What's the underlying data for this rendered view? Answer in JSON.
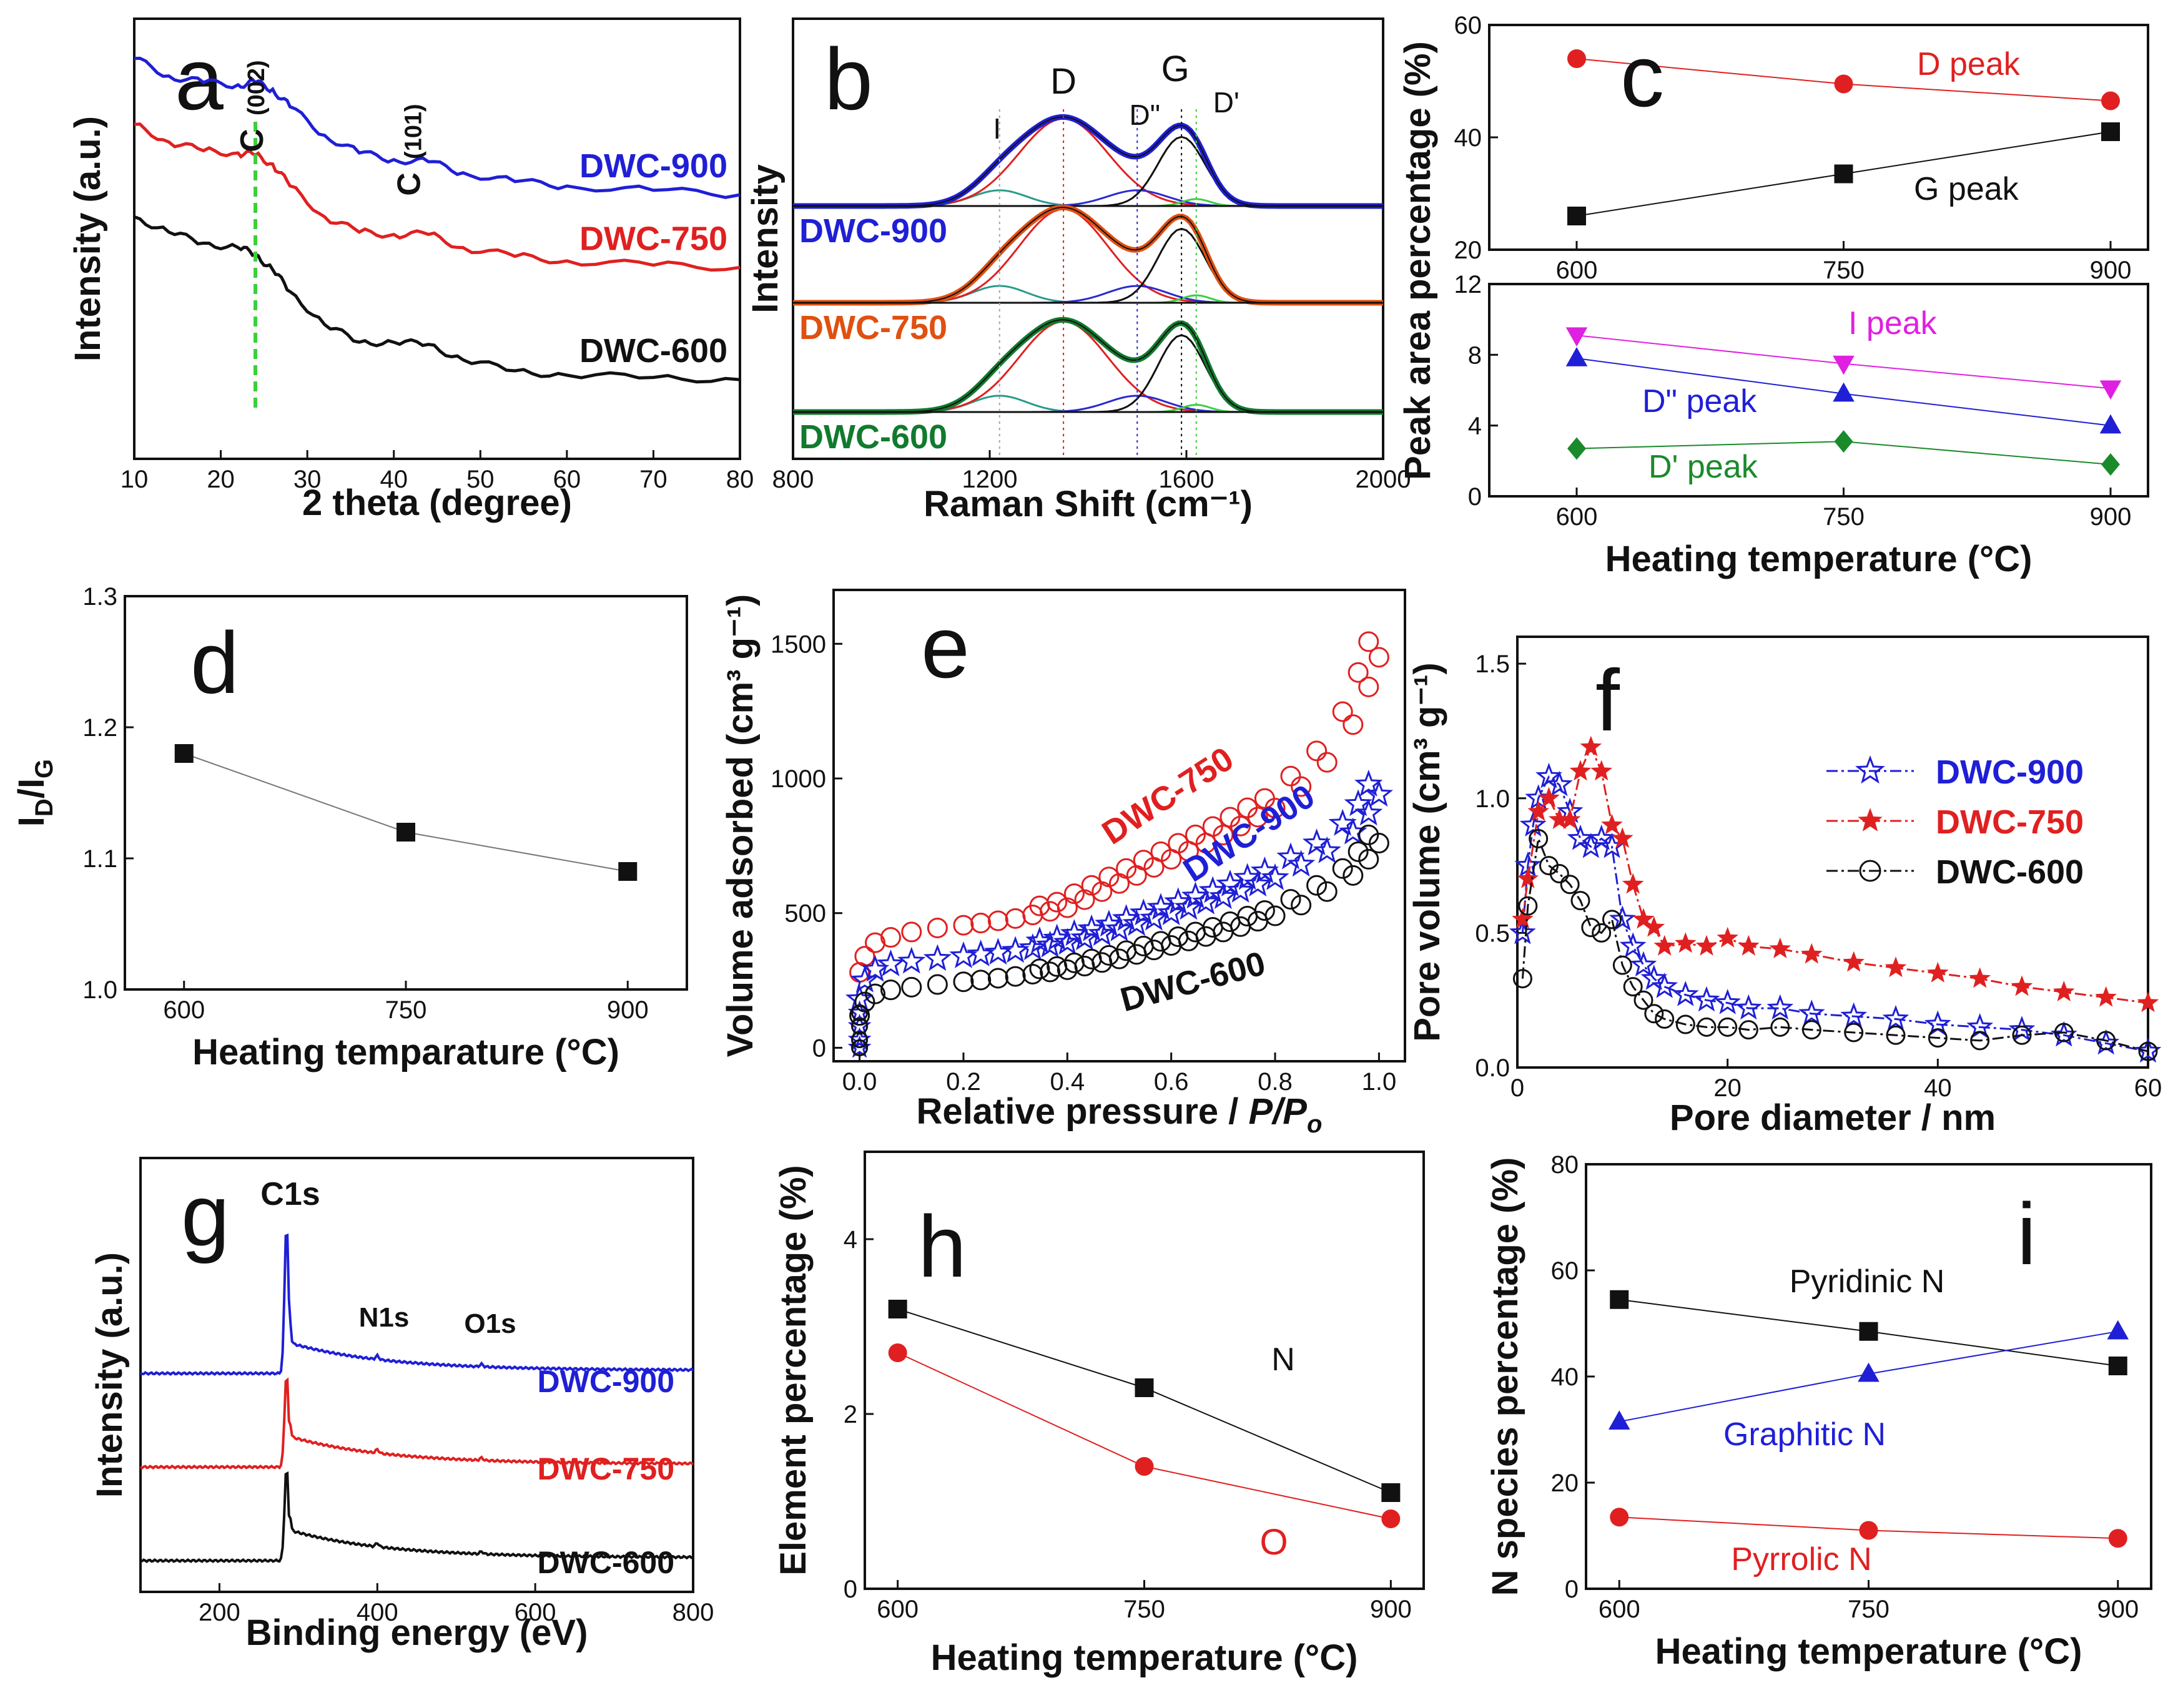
{
  "chart_data": [
    {
      "id": "a",
      "type": "line",
      "letter": "a",
      "xlabel": "2 theta (degree)",
      "ylabel": "Intensity (a.u.)",
      "xlim": [
        10,
        80
      ],
      "ylim": [
        0,
        10
      ],
      "xticks": [
        10,
        20,
        30,
        40,
        50,
        60,
        70,
        80
      ],
      "series": [
        {
          "name": "DWC-900",
          "color": "#1f1fd6",
          "x": [
            10,
            14,
            18,
            22,
            24,
            26,
            28,
            32,
            36,
            40,
            44,
            48,
            54,
            60,
            70,
            80
          ],
          "y": [
            9.1,
            8.7,
            8.55,
            8.5,
            8.55,
            8.4,
            8.0,
            7.35,
            6.95,
            6.8,
            6.75,
            6.5,
            6.3,
            6.2,
            6.1,
            6.0
          ]
        },
        {
          "name": "DWC-750",
          "color": "#e02020",
          "x": [
            10,
            14,
            18,
            22,
            24,
            26,
            28,
            32,
            36,
            40,
            44,
            48,
            54,
            60,
            70,
            80
          ],
          "y": [
            7.6,
            7.2,
            7.0,
            6.95,
            6.9,
            6.7,
            6.2,
            5.5,
            5.15,
            5.1,
            5.1,
            4.8,
            4.6,
            4.5,
            4.4,
            4.35
          ]
        },
        {
          "name": "DWC-600",
          "color": "#111111",
          "x": [
            10,
            14,
            18,
            22,
            24,
            26,
            28,
            32,
            36,
            40,
            44,
            48,
            54,
            60,
            70,
            80
          ],
          "y": [
            5.5,
            5.15,
            4.9,
            4.8,
            4.65,
            4.3,
            3.8,
            3.05,
            2.65,
            2.65,
            2.6,
            2.25,
            2.0,
            1.9,
            1.85,
            1.8
          ]
        }
      ],
      "peak_labels": [
        {
          "text": "C",
          "sub": "(002)",
          "x": 24
        },
        {
          "text": "C",
          "sub": "(101)",
          "x": 43
        }
      ],
      "reference_line_x": 24
    },
    {
      "id": "b",
      "type": "line",
      "letter": "b",
      "xlabel": "Raman Shift (cm⁻¹)",
      "ylabel": "Intensity",
      "xlim": [
        800,
        2000
      ],
      "xticks": [
        800,
        1200,
        1600,
        2000
      ],
      "traces": [
        "DWC-900",
        "DWC-750",
        "DWC-600"
      ],
      "trace_colors": [
        "#1f1fd6",
        "#e05010",
        "#117a2e"
      ],
      "band_labels": [
        "I",
        "D",
        "D\"",
        "G",
        "D'"
      ],
      "band_positions": [
        1220,
        1350,
        1500,
        1590,
        1620
      ]
    },
    {
      "id": "c",
      "type": "line",
      "letter": "c",
      "xlabel": "Heating temperature (°C)",
      "ylabel": "Peak area percentage (%)",
      "x": [
        600,
        750,
        900
      ],
      "top": {
        "ylim": [
          20,
          60
        ],
        "yticks": [
          20,
          40,
          60
        ],
        "series": [
          {
            "name": "D peak",
            "color": "#e02020",
            "marker": "circle",
            "values": [
              54,
              49.5,
              46.5
            ]
          },
          {
            "name": "G peak",
            "color": "#111111",
            "marker": "square",
            "values": [
              26,
              33.5,
              41
            ]
          }
        ]
      },
      "bottom": {
        "ylim": [
          0,
          12
        ],
        "yticks": [
          0,
          4,
          8,
          12
        ],
        "series": [
          {
            "name": "I peak",
            "color": "#e020e0",
            "marker": "triangle-down",
            "values": [
              9.1,
              7.5,
              6.1
            ]
          },
          {
            "name": "D\" peak",
            "color": "#1f1fd6",
            "marker": "triangle-up",
            "values": [
              7.8,
              5.8,
              4.0
            ]
          },
          {
            "name": "D' peak",
            "color": "#1a8a2a",
            "marker": "diamond",
            "values": [
              2.7,
              3.1,
              1.8
            ]
          }
        ]
      }
    },
    {
      "id": "d",
      "type": "line",
      "letter": "d",
      "xlabel": "Heating temparature (°C)",
      "ylabel": "I_D/I_G",
      "ylabel_main": "I",
      "ylabel_sub1": "D",
      "ylabel_sep": "/I",
      "ylabel_sub2": "G",
      "xlim": [
        560,
        940
      ],
      "ylim": [
        1.0,
        1.3
      ],
      "xticks": [
        600,
        750,
        900
      ],
      "yticks": [
        1.0,
        1.1,
        1.2,
        1.3
      ],
      "x": [
        600,
        750,
        900
      ],
      "values": [
        1.18,
        1.12,
        1.09
      ]
    },
    {
      "id": "e",
      "type": "scatter",
      "letter": "e",
      "xlabel_main": "Relative pressure / ",
      "xlabel_italic": "P/P",
      "xlabel_sub": "o",
      "ylabel": "Volume adsorbed (cm³ g⁻¹)",
      "xlim": [
        -0.05,
        1.05
      ],
      "ylim": [
        -50,
        1700
      ],
      "xticks": [
        0.0,
        0.2,
        0.4,
        0.6,
        0.8,
        1.0
      ],
      "yticks": [
        0,
        500,
        1000,
        1500
      ],
      "series": [
        {
          "name": "DWC-750",
          "color": "#e02020",
          "marker": "circle-open",
          "x": [
            0.0,
            0.01,
            0.03,
            0.06,
            0.1,
            0.15,
            0.2,
            0.3,
            0.4,
            0.5,
            0.6,
            0.7,
            0.8,
            0.85,
            0.9,
            0.95,
            0.98,
            1.0
          ],
          "y": [
            280,
            340,
            390,
            410,
            430,
            445,
            455,
            480,
            520,
            610,
            700,
            790,
            890,
            970,
            1060,
            1200,
            1340,
            1450
          ]
        },
        {
          "name": "DWC-900",
          "color": "#1f1fd6",
          "marker": "star-open",
          "x": [
            0.0,
            0.01,
            0.03,
            0.06,
            0.1,
            0.15,
            0.2,
            0.3,
            0.4,
            0.5,
            0.6,
            0.7,
            0.8,
            0.85,
            0.9,
            0.95,
            0.98,
            1.0
          ],
          "y": [
            180,
            250,
            290,
            310,
            320,
            330,
            340,
            360,
            390,
            440,
            500,
            560,
            630,
            680,
            730,
            800,
            870,
            940
          ]
        },
        {
          "name": "DWC-600",
          "color": "#111111",
          "marker": "circle-open",
          "x": [
            0.0,
            0.01,
            0.03,
            0.06,
            0.1,
            0.15,
            0.2,
            0.3,
            0.4,
            0.5,
            0.6,
            0.7,
            0.8,
            0.85,
            0.9,
            0.95,
            0.98,
            1.0
          ],
          "y": [
            120,
            170,
            200,
            215,
            225,
            235,
            245,
            265,
            290,
            330,
            380,
            430,
            490,
            530,
            580,
            640,
            700,
            760
          ]
        }
      ]
    },
    {
      "id": "f",
      "type": "line",
      "letter": "f",
      "xlabel": "Pore diameter / nm",
      "ylabel": "Pore volume (cm³ g⁻¹)",
      "xlim": [
        0,
        60
      ],
      "ylim": [
        0,
        1.6
      ],
      "xticks": [
        0,
        20,
        40,
        60
      ],
      "yticks": [
        0.0,
        0.5,
        1.0,
        1.5
      ],
      "series": [
        {
          "name": "DWC-900",
          "color": "#1f1fd6",
          "marker": "star-open",
          "x": [
            0.5,
            1,
            1.5,
            2,
            3,
            4,
            5,
            6,
            7,
            8,
            9,
            10,
            11,
            12,
            13,
            14,
            16,
            18,
            20,
            22,
            25,
            28,
            32,
            36,
            40,
            44,
            48,
            52,
            56,
            60
          ],
          "y": [
            0.5,
            0.75,
            0.9,
            1.0,
            1.08,
            1.05,
            0.95,
            0.85,
            0.82,
            0.85,
            0.82,
            0.55,
            0.45,
            0.38,
            0.33,
            0.3,
            0.27,
            0.25,
            0.24,
            0.22,
            0.22,
            0.2,
            0.19,
            0.18,
            0.16,
            0.15,
            0.14,
            0.12,
            0.09,
            0.06
          ]
        },
        {
          "name": "DWC-750",
          "color": "#e02020",
          "marker": "star-filled",
          "x": [
            0.5,
            1,
            2,
            3,
            4,
            5,
            6,
            7,
            8,
            9,
            10,
            11,
            12,
            13,
            14,
            16,
            18,
            20,
            22,
            25,
            28,
            32,
            36,
            40,
            44,
            48,
            52,
            56,
            60
          ],
          "y": [
            0.55,
            0.7,
            0.95,
            1.0,
            0.92,
            0.92,
            1.1,
            1.19,
            1.1,
            0.9,
            0.85,
            0.68,
            0.55,
            0.52,
            0.45,
            0.46,
            0.45,
            0.48,
            0.45,
            0.44,
            0.42,
            0.39,
            0.37,
            0.35,
            0.33,
            0.3,
            0.28,
            0.26,
            0.24
          ]
        },
        {
          "name": "DWC-600",
          "color": "#111111",
          "marker": "circle-open",
          "x": [
            0.5,
            1,
            2,
            3,
            4,
            5,
            6,
            7,
            8,
            9,
            10,
            11,
            12,
            13,
            14,
            16,
            18,
            20,
            22,
            25,
            28,
            32,
            36,
            40,
            44,
            48,
            52,
            56,
            60
          ],
          "y": [
            0.33,
            0.6,
            0.85,
            0.75,
            0.72,
            0.68,
            0.62,
            0.52,
            0.5,
            0.55,
            0.38,
            0.3,
            0.25,
            0.2,
            0.18,
            0.16,
            0.15,
            0.15,
            0.14,
            0.15,
            0.14,
            0.13,
            0.12,
            0.11,
            0.1,
            0.12,
            0.13,
            0.1,
            0.06
          ]
        }
      ]
    },
    {
      "id": "g",
      "type": "line",
      "letter": "g",
      "xlabel": "Binding energy (eV)",
      "ylabel": "Intensity (a.u.)",
      "xlim": [
        100,
        800
      ],
      "xticks": [
        200,
        400,
        600,
        800
      ],
      "traces": [
        "DWC-900",
        "DWC-750",
        "DWC-600"
      ],
      "trace_colors": [
        "#1f1fd6",
        "#e02020",
        "#111111"
      ],
      "peak_labels": [
        {
          "text": "C1s",
          "x": 285
        },
        {
          "text": "N1s",
          "x": 400
        },
        {
          "text": "O1s",
          "x": 532
        }
      ]
    },
    {
      "id": "h",
      "type": "line",
      "letter": "h",
      "xlabel": "Heating temperature (°C)",
      "ylabel": "Element percentage (%)",
      "xlim": [
        580,
        920
      ],
      "ylim": [
        0,
        5
      ],
      "xticks": [
        600,
        750,
        900
      ],
      "yticks": [
        0,
        2,
        4
      ],
      "x": [
        600,
        750,
        900
      ],
      "series": [
        {
          "name": "N",
          "color": "#111111",
          "marker": "square",
          "values": [
            3.2,
            2.3,
            1.1
          ]
        },
        {
          "name": "O",
          "color": "#e02020",
          "marker": "circle",
          "values": [
            2.7,
            1.4,
            0.8
          ]
        }
      ]
    },
    {
      "id": "i",
      "type": "line",
      "letter": "i",
      "xlabel": "Heating temperature (°C)",
      "ylabel": "N species percentage (%)",
      "xlim": [
        580,
        920
      ],
      "ylim": [
        0,
        80
      ],
      "xticks": [
        600,
        750,
        900
      ],
      "yticks": [
        0,
        20,
        40,
        60,
        80
      ],
      "x": [
        600,
        750,
        900
      ],
      "series": [
        {
          "name": "Pyridinic N",
          "color": "#111111",
          "marker": "square",
          "values": [
            54.5,
            48.5,
            42
          ]
        },
        {
          "name": "Graphitic N",
          "color": "#1f1fd6",
          "marker": "triangle-up",
          "values": [
            31.5,
            40.5,
            48.5
          ]
        },
        {
          "name": "Pyrrolic N",
          "color": "#e02020",
          "marker": "circle",
          "values": [
            13.5,
            11,
            9.5
          ]
        }
      ]
    }
  ]
}
